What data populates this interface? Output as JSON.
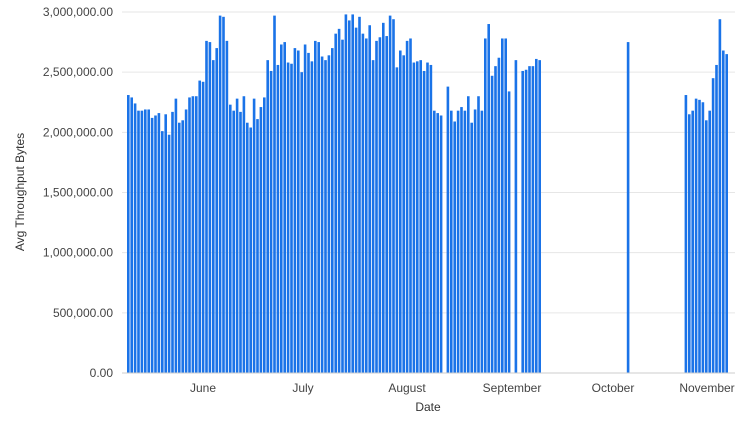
{
  "chart_data": {
    "type": "bar",
    "title": "",
    "xlabel": "Date",
    "ylabel": "Avg Throughput Bytes",
    "ylim": [
      0,
      3000000
    ],
    "yticks": [
      0,
      500000,
      1000000,
      1500000,
      2000000,
      2500000,
      3000000
    ],
    "ytick_labels": [
      "0.00",
      "500,000.00",
      "1,000,000.00",
      "1,500,000.00",
      "2,000,000.00",
      "2,500,000.00",
      "3,000,000.00"
    ],
    "xtick_labels": [
      "June",
      "July",
      "August",
      "September",
      "October",
      "November"
    ],
    "grid": true,
    "legend": "none",
    "bar_color": "#1a73e8",
    "series": [
      {
        "name": "Avg Throughput Bytes",
        "start_date": "May 13",
        "values": [
          2310000,
          2290000,
          2240000,
          2180000,
          2180000,
          2190000,
          2190000,
          2120000,
          2140000,
          2160000,
          2010000,
          2150000,
          1980000,
          2170000,
          2280000,
          2080000,
          2100000,
          2190000,
          2290000,
          2300000,
          2300000,
          2430000,
          2420000,
          2760000,
          2750000,
          2600000,
          2700000,
          2970000,
          2960000,
          2760000,
          2230000,
          2180000,
          2280000,
          2170000,
          2300000,
          2080000,
          2040000,
          2280000,
          2110000,
          2210000,
          2290000,
          2600000,
          2510000,
          2970000,
          2560000,
          2730000,
          2750000,
          2580000,
          2570000,
          2700000,
          2680000,
          2500000,
          2730000,
          2660000,
          2590000,
          2760000,
          2750000,
          2630000,
          2600000,
          2640000,
          2700000,
          2820000,
          2860000,
          2770000,
          2980000,
          2930000,
          2980000,
          2870000,
          2960000,
          2820000,
          2780000,
          2890000,
          2600000,
          2760000,
          2790000,
          2910000,
          2800000,
          2970000,
          2940000,
          2540000,
          2680000,
          2640000,
          2760000,
          2780000,
          2580000,
          2590000,
          2600000,
          2510000,
          2580000,
          2560000,
          2180000,
          2160000,
          2140000,
          null,
          2380000,
          2180000,
          2090000,
          2180000,
          2210000,
          2180000,
          2300000,
          2080000,
          2190000,
          2300000,
          2180000,
          2780000,
          2900000,
          2470000,
          2550000,
          2620000,
          2780000,
          2780000,
          2340000,
          null,
          2600000,
          null,
          2510000,
          2520000,
          2550000,
          2550000,
          2610000,
          2600000,
          null,
          null,
          null,
          null,
          null,
          null,
          null,
          null,
          null,
          null,
          null,
          null,
          null,
          null,
          null,
          null,
          null,
          null,
          null,
          null,
          null,
          null,
          null,
          null,
          null,
          2750000,
          null,
          null,
          null,
          null,
          null,
          null,
          null,
          null,
          null,
          null,
          null,
          null,
          null,
          null,
          null,
          null,
          2310000,
          2150000,
          2180000,
          2280000,
          2270000,
          2250000,
          2100000,
          2180000,
          2450000,
          2560000,
          2940000,
          2680000,
          2650000
        ]
      }
    ]
  }
}
